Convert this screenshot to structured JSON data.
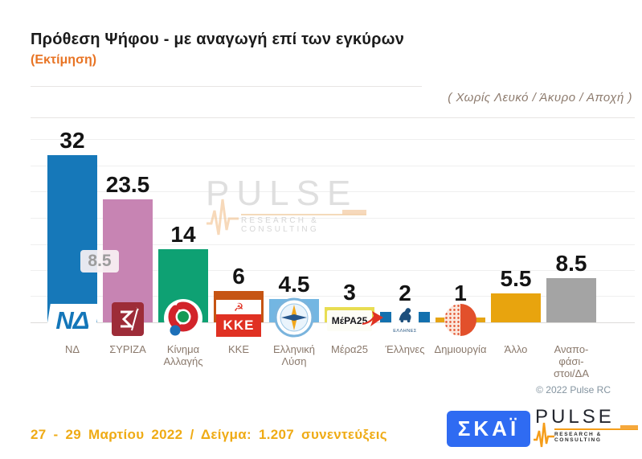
{
  "header": {
    "title": "Πρόθεση Ψήφου - με αναγωγή επί των εγκύρων",
    "estimate": "(Εκτίμηση)",
    "note": "( Χωρίς Λευκό / Άκυρο / Αποχή )"
  },
  "chart_data": {
    "type": "bar",
    "title": "Πρόθεση Ψήφου - με αναγωγή επί των εγκύρων (Εκτίμηση)",
    "categories": [
      "ΝΔ",
      "ΣΥΡΙΖΑ",
      "Κίνημα Αλλαγής",
      "ΚΚΕ",
      "Ελληνική Λύση",
      "Μέρα25",
      "Έλληνες",
      "Δημιουργία",
      "Άλλο",
      "Αναποφάσιστοι/ΔΑ"
    ],
    "values": [
      32,
      23.5,
      14,
      6,
      4.5,
      3,
      2,
      1,
      5.5,
      8.5
    ],
    "ylim": [
      0,
      40
    ],
    "grid": "horizontal, every 5, no tick labels",
    "legend": "none",
    "ghost_label": {
      "text": "8.5"
    },
    "parties": [
      {
        "id": "nd",
        "label": [
          "ΝΔ"
        ],
        "value": 32,
        "display": "32",
        "color": "#1678b9",
        "logo": "nd"
      },
      {
        "id": "syriza",
        "label": [
          "ΣΥΡΙΖΑ"
        ],
        "value": 23.5,
        "display": "23.5",
        "color": "#c784b3",
        "logo": "syriza"
      },
      {
        "id": "kinal",
        "label": [
          "Κίνημα",
          "Αλλαγής"
        ],
        "value": 14,
        "display": "14",
        "color": "#0ea173",
        "logo": "kinal"
      },
      {
        "id": "kke",
        "label": [
          "ΚΚΕ"
        ],
        "value": 6,
        "display": "6",
        "color": "#c65413",
        "logo": "kke"
      },
      {
        "id": "el-lysi",
        "label": [
          "Ελληνική",
          "Λύση"
        ],
        "value": 4.5,
        "display": "4.5",
        "color": "#73b6e2",
        "logo": "compass"
      },
      {
        "id": "mera25",
        "label": [
          "Μέρα25"
        ],
        "value": 3,
        "display": "3",
        "color": "#e8dd52",
        "logo": "mera25"
      },
      {
        "id": "ellines",
        "label": [
          "Έλληνες"
        ],
        "value": 2,
        "display": "2",
        "color": "#1370ae",
        "logo": "ellines"
      },
      {
        "id": "dimiourgia",
        "label": [
          "Δημιουργία"
        ],
        "value": 1,
        "display": "1",
        "color": "#e6a414",
        "logo": "dimiourgia"
      },
      {
        "id": "allo",
        "label": [
          "Άλλο"
        ],
        "value": 5.5,
        "display": "5.5",
        "color": "#e8a40e",
        "logo": null
      },
      {
        "id": "anapofasistoi",
        "label": [
          "Αναπο-",
          "φάσι-",
          "στοι/ΔΑ"
        ],
        "value": 8.5,
        "display": "8.5",
        "color": "#a4a4a4",
        "logo": null
      }
    ]
  },
  "watermark": {
    "brand": "PULSE",
    "tagline": "RESEARCH & CONSULTING"
  },
  "copyright": "© 2022 Pulse RC",
  "footer": {
    "survey_info": "27 - 29 Μαρτίου 2022 / Δείγμα: 1.207 συνεντεύξεις",
    "skai_brand": "ΣΚΑΪ",
    "pulse_brand": "PULSE",
    "pulse_tagline": "RESEARCH & CONSULTING"
  },
  "logo_icons": [
    "nd-flag-logo",
    "syriza-star-logo",
    "kinal-rose-logo",
    "kke-hammer-sickle-logo",
    "elliniki-lysi-compass-logo",
    "mera25-arrow-logo",
    "ellines-emblem-logo",
    "dimiourgia-brain-logo",
    "skai-logo",
    "pulse-logo",
    "pulse-watermark"
  ]
}
